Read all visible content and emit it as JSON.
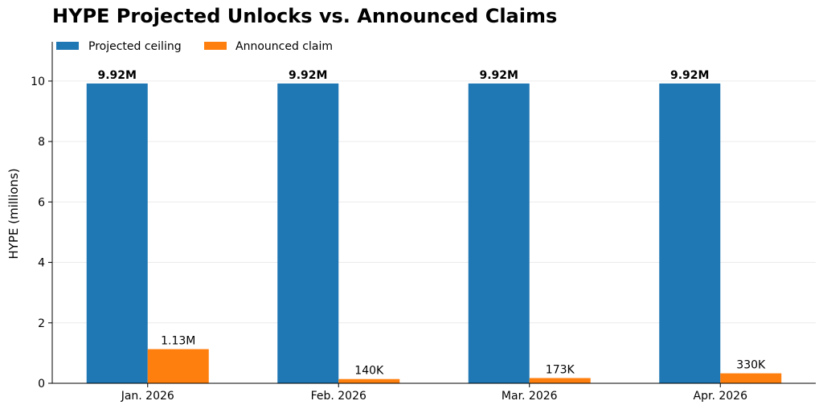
{
  "chart_data": {
    "type": "bar",
    "title": "HYPE Projected Unlocks vs. Announced Claims",
    "xlabel": "",
    "ylabel": "HYPE (millions)",
    "ylim": [
      0,
      11.3
    ],
    "yticks": [
      "0",
      "2",
      "4",
      "6",
      "8",
      "10"
    ],
    "categories": [
      "Jan. 2026",
      "Feb. 2026",
      "Mar. 2026",
      "Apr. 2026"
    ],
    "grid": "horizontal",
    "legend_position": "top-left",
    "series": [
      {
        "name": "Projected ceiling",
        "color": "#1f77b4",
        "values": [
          9.92,
          9.92,
          9.92,
          9.92
        ],
        "labels": [
          "9.92M",
          "9.92M",
          "9.92M",
          "9.92M"
        ]
      },
      {
        "name": "Announced claim",
        "color": "#ff7f0e",
        "values": [
          1.13,
          0.14,
          0.173,
          0.33
        ],
        "labels": [
          "1.13M",
          "140K",
          "173K",
          "330K"
        ]
      }
    ]
  }
}
